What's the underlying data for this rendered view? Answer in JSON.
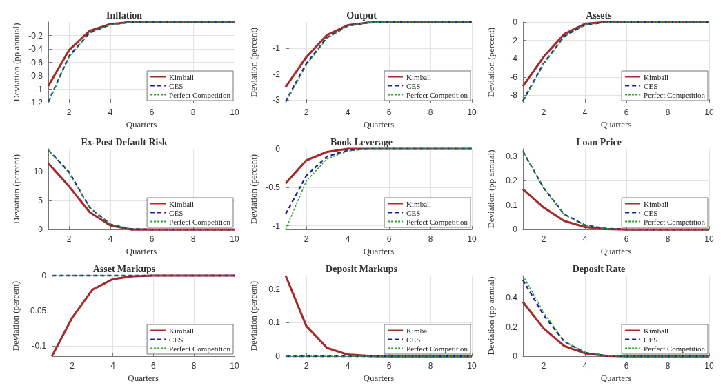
{
  "chart_data": [
    {
      "type": "line",
      "title": "Inflation",
      "xlabel": "Quarters",
      "ylabel": "Deviation (pp annual)",
      "x": [
        1,
        2,
        3,
        4,
        5,
        6,
        7,
        8,
        9,
        10
      ],
      "xlim": [
        1,
        10
      ],
      "xticks": [
        2,
        4,
        6,
        8,
        10
      ],
      "ylim": [
        -1.2,
        0
      ],
      "yticks": [
        -1.2,
        -1,
        -0.8,
        -0.6,
        -0.4,
        -0.2
      ],
      "grid": true,
      "legend": "bottom right",
      "marker": "none",
      "series": [
        {
          "name": "Kimball",
          "color": "#a52a2a",
          "line_style": "solid",
          "values": [
            -0.95,
            -0.42,
            -0.13,
            -0.03,
            0,
            0,
            0,
            0,
            0,
            0
          ]
        },
        {
          "name": "CES",
          "color": "#1f1fa0",
          "line_style": "dashed",
          "values": [
            -1.19,
            -0.51,
            -0.16,
            -0.04,
            0,
            0,
            0,
            0,
            0,
            0
          ]
        },
        {
          "name": "Perfect Competition",
          "color": "#2ca02c",
          "line_style": "dotted",
          "values": [
            -1.2,
            -0.52,
            -0.16,
            -0.04,
            0,
            0,
            0,
            0,
            0,
            0
          ]
        }
      ]
    },
    {
      "type": "line",
      "title": "Output",
      "xlabel": "Quarters",
      "ylabel": "Deviation (percent)",
      "x": [
        1,
        2,
        3,
        4,
        5,
        6,
        7,
        8,
        9,
        10
      ],
      "xlim": [
        1,
        10
      ],
      "xticks": [
        2,
        4,
        6,
        8,
        10
      ],
      "ylim": [
        -3.1,
        0
      ],
      "yticks": [
        -3,
        -2,
        -1
      ],
      "grid": true,
      "legend": "bottom right",
      "marker": "none",
      "series": [
        {
          "name": "Kimball",
          "color": "#a52a2a",
          "line_style": "solid",
          "values": [
            -2.5,
            -1.35,
            -0.5,
            -0.12,
            -0.02,
            0,
            0,
            0,
            0,
            0
          ]
        },
        {
          "name": "CES",
          "color": "#1f1fa0",
          "line_style": "dashed",
          "values": [
            -3.05,
            -1.6,
            -0.6,
            -0.15,
            -0.02,
            0,
            0,
            0,
            0,
            0
          ]
        },
        {
          "name": "Perfect Competition",
          "color": "#2ca02c",
          "line_style": "dotted",
          "values": [
            -3.1,
            -1.65,
            -0.62,
            -0.15,
            -0.02,
            0,
            0,
            0,
            0,
            0
          ]
        }
      ]
    },
    {
      "type": "line",
      "title": "Assets",
      "xlabel": "Quarters",
      "ylabel": "Deviation (percent)",
      "x": [
        1,
        2,
        3,
        4,
        5,
        6,
        7,
        8,
        9,
        10
      ],
      "xlim": [
        1,
        10
      ],
      "xticks": [
        2,
        4,
        6,
        8,
        10
      ],
      "ylim": [
        -8.8,
        0
      ],
      "yticks": [
        -8,
        -6,
        -4,
        -2,
        0
      ],
      "grid": true,
      "legend": "bottom right",
      "marker": "none",
      "series": [
        {
          "name": "Kimball",
          "color": "#a52a2a",
          "line_style": "solid",
          "values": [
            -7,
            -3.8,
            -1.3,
            -0.2,
            0,
            0,
            0,
            0,
            0,
            0
          ]
        },
        {
          "name": "CES",
          "color": "#1f1fa0",
          "line_style": "dashed",
          "values": [
            -8.6,
            -4.5,
            -1.55,
            -0.3,
            -0.03,
            0,
            0,
            0,
            0,
            0
          ]
        },
        {
          "name": "Perfect Competition",
          "color": "#2ca02c",
          "line_style": "dotted",
          "values": [
            -8.7,
            -4.6,
            -1.6,
            -0.3,
            -0.03,
            0,
            0,
            0,
            0,
            0
          ]
        }
      ]
    },
    {
      "type": "line",
      "title": "Ex-Post Default Risk",
      "xlabel": "Quarters",
      "ylabel": "Deviation (percent)",
      "x": [
        1,
        2,
        3,
        4,
        5,
        6,
        7,
        8,
        9,
        10
      ],
      "xlim": [
        1,
        10
      ],
      "xticks": [
        2,
        4,
        6,
        8,
        10
      ],
      "ylim": [
        0,
        14
      ],
      "yticks": [
        0,
        5,
        10
      ],
      "grid": true,
      "legend": "bottom right",
      "marker": "none",
      "series": [
        {
          "name": "Kimball",
          "color": "#a52a2a",
          "line_style": "solid",
          "values": [
            11.5,
            7.5,
            3,
            0.7,
            0,
            0,
            0,
            0,
            0,
            0
          ]
        },
        {
          "name": "CES",
          "color": "#1f1fa0",
          "line_style": "dashed",
          "values": [
            13.8,
            10,
            3.8,
            0.9,
            0.1,
            0,
            0,
            0,
            0,
            0
          ]
        },
        {
          "name": "Perfect Competition",
          "color": "#2ca02c",
          "line_style": "dotted",
          "values": [
            13.8,
            9.8,
            3.8,
            0.9,
            0.1,
            0,
            0,
            0,
            0,
            0
          ]
        }
      ]
    },
    {
      "type": "line",
      "title": "Book Leverage",
      "xlabel": "Quarters",
      "ylabel": "Deviation (percent)",
      "x": [
        1,
        2,
        3,
        4,
        5,
        6,
        7,
        8,
        9,
        10
      ],
      "xlim": [
        1,
        10
      ],
      "xticks": [
        2,
        4,
        6,
        8,
        10
      ],
      "ylim": [
        -1.05,
        0
      ],
      "yticks": [
        -1,
        -0.5,
        0
      ],
      "grid": true,
      "legend": "bottom right",
      "marker": "none",
      "series": [
        {
          "name": "Kimball",
          "color": "#a52a2a",
          "line_style": "solid",
          "values": [
            -0.45,
            -0.15,
            -0.04,
            0,
            0,
            0,
            0,
            0,
            0,
            0
          ]
        },
        {
          "name": "CES",
          "color": "#1f1fa0",
          "line_style": "dashed",
          "values": [
            -0.85,
            -0.35,
            -0.1,
            -0.02,
            0,
            0,
            0,
            0,
            0,
            0
          ]
        },
        {
          "name": "Perfect Competition",
          "color": "#2ca02c",
          "line_style": "dotted",
          "values": [
            -1.05,
            -0.42,
            -0.13,
            -0.03,
            0,
            0,
            0,
            0,
            0,
            0
          ]
        }
      ]
    },
    {
      "type": "line",
      "title": "Loan Price",
      "xlabel": "Quarters",
      "ylabel": "Deviation (pp annual)",
      "x": [
        1,
        2,
        3,
        4,
        5,
        6,
        7,
        8,
        9,
        10
      ],
      "xlim": [
        1,
        10
      ],
      "xticks": [
        2,
        4,
        6,
        8,
        10
      ],
      "ylim": [
        0,
        0.33
      ],
      "yticks": [
        0,
        0.1,
        0.2,
        0.3
      ],
      "grid": true,
      "legend": "bottom right",
      "marker": "none",
      "series": [
        {
          "name": "Kimball",
          "color": "#a52a2a",
          "line_style": "solid",
          "values": [
            0.165,
            0.09,
            0.035,
            0.01,
            0.002,
            0,
            0,
            0,
            0,
            0
          ]
        },
        {
          "name": "CES",
          "color": "#1f1fa0",
          "line_style": "dashed",
          "values": [
            0.32,
            0.17,
            0.062,
            0.018,
            0.004,
            0,
            0,
            0,
            0,
            0
          ]
        },
        {
          "name": "Perfect Competition",
          "color": "#2ca02c",
          "line_style": "dotted",
          "values": [
            0.32,
            0.17,
            0.06,
            0.017,
            0.004,
            0,
            0,
            0,
            0,
            0
          ]
        }
      ]
    },
    {
      "type": "line",
      "title": "Asset Markups",
      "xlabel": "Quarters",
      "ylabel": "Deviation (percent)",
      "x": [
        1,
        2,
        3,
        4,
        5,
        6,
        7,
        8,
        9,
        10
      ],
      "xlim": [
        1,
        10
      ],
      "xticks": [
        2,
        4,
        6,
        8,
        10
      ],
      "ylim": [
        -0.115,
        0
      ],
      "yticks": [
        -0.1,
        -0.05,
        0
      ],
      "grid": true,
      "legend": "bottom right",
      "marker": "none",
      "series": [
        {
          "name": "Kimball",
          "color": "#a52a2a",
          "line_style": "solid",
          "values": [
            -0.115,
            -0.06,
            -0.02,
            -0.005,
            -0.001,
            0,
            0,
            0,
            0,
            0
          ]
        },
        {
          "name": "CES",
          "color": "#1f1fa0",
          "line_style": "dashed",
          "values": [
            0,
            0,
            0,
            0,
            0,
            0,
            0,
            0,
            0,
            0
          ]
        },
        {
          "name": "Perfect Competition",
          "color": "#2ca02c",
          "line_style": "dotted",
          "values": [
            0,
            0,
            0,
            0,
            0,
            0,
            0,
            0,
            0,
            0
          ]
        }
      ]
    },
    {
      "type": "line",
      "title": "Deposit Markups",
      "xlabel": "Quarters",
      "ylabel": "Deviation (percent)",
      "x": [
        1,
        2,
        3,
        4,
        5,
        6,
        7,
        8,
        9,
        10
      ],
      "xlim": [
        1,
        10
      ],
      "xticks": [
        2,
        4,
        6,
        8,
        10
      ],
      "ylim": [
        0,
        0.24
      ],
      "yticks": [
        0,
        0.1,
        0.2
      ],
      "grid": true,
      "legend": "bottom right",
      "marker": "none",
      "series": [
        {
          "name": "Kimball",
          "color": "#a52a2a",
          "line_style": "solid",
          "values": [
            0.24,
            0.09,
            0.025,
            0.005,
            0.001,
            0,
            0,
            0,
            0,
            0
          ]
        },
        {
          "name": "CES",
          "color": "#1f1fa0",
          "line_style": "dashed",
          "values": [
            0,
            0,
            0,
            0,
            0,
            0,
            0,
            0,
            0,
            0
          ]
        },
        {
          "name": "Perfect Competition",
          "color": "#2ca02c",
          "line_style": "dotted",
          "values": [
            0,
            0,
            0,
            0,
            0,
            0,
            0,
            0,
            0,
            0
          ]
        }
      ]
    },
    {
      "type": "line",
      "title": "Deposit Rate",
      "xlabel": "Quarters",
      "ylabel": "Deviation (pp annual)",
      "x": [
        1,
        2,
        3,
        4,
        5,
        6,
        7,
        8,
        9,
        10
      ],
      "xlim": [
        1,
        10
      ],
      "xticks": [
        2,
        4,
        6,
        8,
        10
      ],
      "ylim": [
        0,
        0.55
      ],
      "yticks": [
        0,
        0.2,
        0.4
      ],
      "grid": true,
      "legend": "bottom right",
      "marker": "none",
      "series": [
        {
          "name": "Kimball",
          "color": "#a52a2a",
          "line_style": "solid",
          "values": [
            0.37,
            0.19,
            0.07,
            0.02,
            0.003,
            0,
            0,
            0,
            0,
            0
          ]
        },
        {
          "name": "CES",
          "color": "#1f1fa0",
          "line_style": "dashed",
          "values": [
            0.52,
            0.28,
            0.1,
            0.025,
            0.004,
            0,
            0,
            0,
            0,
            0
          ]
        },
        {
          "name": "Perfect Competition",
          "color": "#2ca02c",
          "line_style": "dotted",
          "values": [
            0.55,
            0.3,
            0.1,
            0.028,
            0.004,
            0,
            0,
            0,
            0,
            0
          ]
        }
      ]
    }
  ]
}
